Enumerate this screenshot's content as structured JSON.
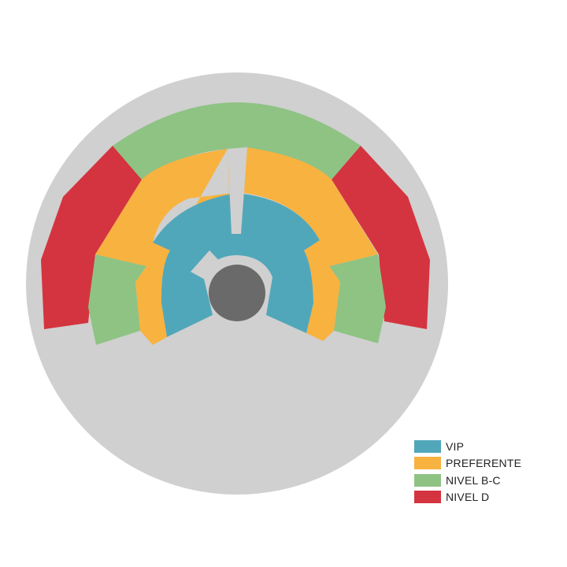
{
  "colors": {
    "background": "#d0d0d0",
    "stage": "#6a6a6a",
    "vip": "#51a7ba",
    "preferente": "#f8b240",
    "nivel_bc": "#8ec384",
    "nivel_d": "#d4343f"
  },
  "legend": {
    "items": [
      {
        "label": "VIP",
        "color": "#51a7ba"
      },
      {
        "label": "PREFERENTE",
        "color": "#f8b240"
      },
      {
        "label": "NIVEL B-C",
        "color": "#8ec384"
      },
      {
        "label": "NIVEL D",
        "color": "#d4343f"
      }
    ]
  }
}
